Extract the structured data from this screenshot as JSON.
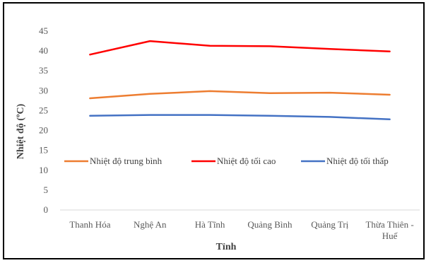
{
  "chart_data": {
    "type": "line",
    "title": "",
    "xlabel": "Tỉnh",
    "ylabel": "Nhiệt độ (ºC)",
    "ylim": [
      0,
      45
    ],
    "yticks": [
      0,
      5,
      10,
      15,
      20,
      25,
      30,
      35,
      40,
      45
    ],
    "grid": false,
    "legend_position": "middle-inside",
    "categories": [
      [
        "Thanh Hóa"
      ],
      [
        "Nghệ An"
      ],
      [
        "Hà Tĩnh"
      ],
      [
        "Quảng Bình"
      ],
      [
        "Quảng Trị"
      ],
      [
        "Thừa Thiên -",
        "Huế"
      ]
    ],
    "series": [
      {
        "name": "Nhiệt độ trung bình",
        "color": "#ED7D31",
        "values": [
          28.1,
          29.2,
          29.9,
          29.4,
          29.5,
          29.0
        ]
      },
      {
        "name": "Nhiệt độ tối cao",
        "color": "#FF0000",
        "values": [
          39.1,
          42.5,
          41.3,
          41.2,
          40.5,
          39.9
        ]
      },
      {
        "name": "Nhiệt độ tối thấp",
        "color": "#4472C4",
        "values": [
          23.7,
          23.9,
          23.9,
          23.7,
          23.4,
          22.8
        ]
      }
    ]
  }
}
